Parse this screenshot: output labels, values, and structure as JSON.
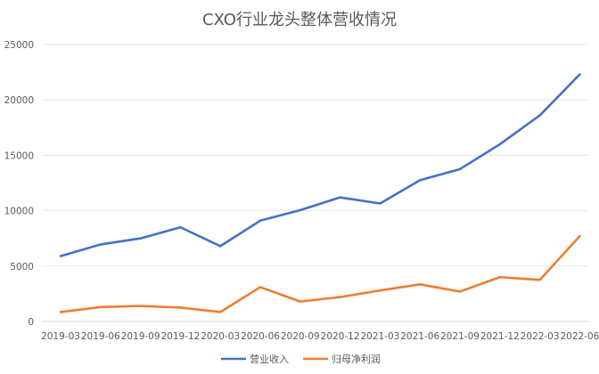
{
  "chart_data": {
    "type": "line",
    "title": "CXO行业龙头整体营收情况",
    "xlabel": "",
    "ylabel": "",
    "categories": [
      "2019-03",
      "2019-06",
      "2019-09",
      "2019-12",
      "2020-03",
      "2020-06",
      "2020-09",
      "2020-12",
      "2021-03",
      "2021-06",
      "2021-09",
      "2021-12",
      "2022-03",
      "2022-06"
    ],
    "ylim": [
      0,
      25000
    ],
    "yticks": [
      0,
      5000,
      10000,
      15000,
      20000,
      25000
    ],
    "grid": "horizontal",
    "legend_position": "bottom",
    "series": [
      {
        "name": "营业收入",
        "color": "#4472C4",
        "values": [
          5900,
          6950,
          7500,
          8500,
          6800,
          9100,
          10050,
          11200,
          10650,
          12750,
          13750,
          16000,
          18600,
          22300
        ]
      },
      {
        "name": "归母净利润",
        "color": "#ED7D31",
        "values": [
          850,
          1300,
          1400,
          1250,
          850,
          3100,
          1800,
          2200,
          2800,
          3350,
          2700,
          4000,
          3750,
          7700
        ]
      }
    ]
  }
}
